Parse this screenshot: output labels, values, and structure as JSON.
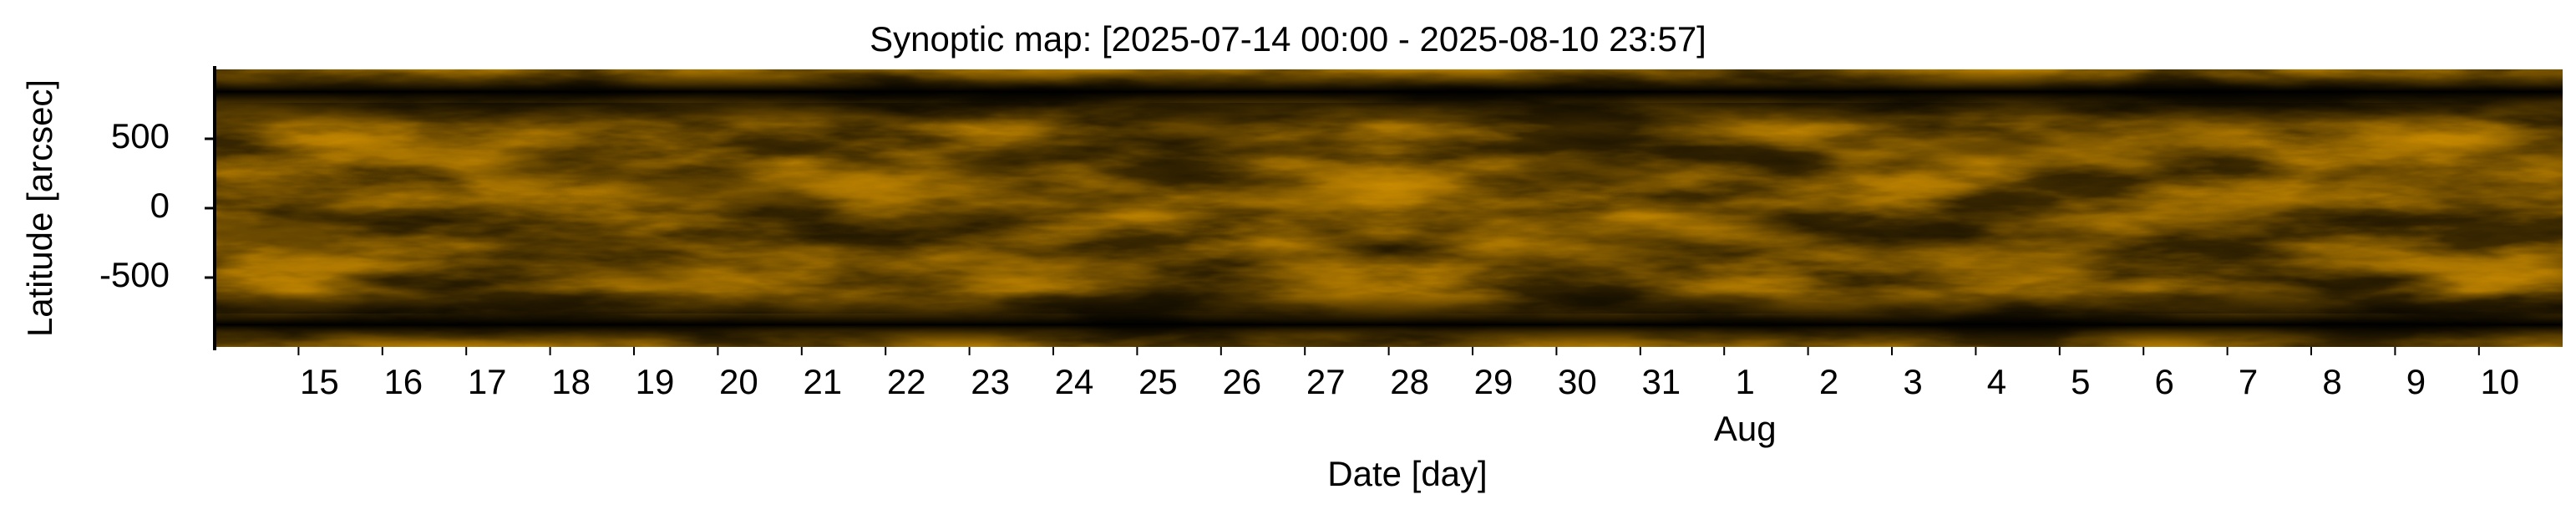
{
  "chart_data": {
    "type": "heatmap",
    "title": "Synoptic map: [2025-07-14 00:00 - 2025-08-10 23:57]",
    "xlabel": "Date [day]",
    "ylabel": "Latitude [arcsec]",
    "xlim": [
      "2025-07-14 00:00",
      "2025-08-10 23:57"
    ],
    "ylim": [
      -1000,
      1000
    ],
    "yticks": [
      -500,
      0,
      500
    ],
    "xticks": [
      {
        "value": "2025-07-15",
        "label": "15"
      },
      {
        "value": "2025-07-16",
        "label": "16"
      },
      {
        "value": "2025-07-17",
        "label": "17"
      },
      {
        "value": "2025-07-18",
        "label": "18"
      },
      {
        "value": "2025-07-19",
        "label": "19"
      },
      {
        "value": "2025-07-20",
        "label": "20"
      },
      {
        "value": "2025-07-21",
        "label": "21"
      },
      {
        "value": "2025-07-22",
        "label": "22"
      },
      {
        "value": "2025-07-23",
        "label": "23"
      },
      {
        "value": "2025-07-24",
        "label": "24"
      },
      {
        "value": "2025-07-25",
        "label": "25"
      },
      {
        "value": "2025-07-26",
        "label": "26"
      },
      {
        "value": "2025-07-27",
        "label": "27"
      },
      {
        "value": "2025-07-28",
        "label": "28"
      },
      {
        "value": "2025-07-29",
        "label": "29"
      },
      {
        "value": "2025-07-30",
        "label": "30"
      },
      {
        "value": "2025-07-31",
        "label": "31"
      },
      {
        "value": "2025-08-01",
        "label": "1"
      },
      {
        "value": "2025-08-02",
        "label": "2"
      },
      {
        "value": "2025-08-03",
        "label": "3"
      },
      {
        "value": "2025-08-04",
        "label": "4"
      },
      {
        "value": "2025-08-05",
        "label": "5"
      },
      {
        "value": "2025-08-06",
        "label": "6"
      },
      {
        "value": "2025-08-07",
        "label": "7"
      },
      {
        "value": "2025-08-08",
        "label": "8"
      },
      {
        "value": "2025-08-09",
        "label": "9"
      },
      {
        "value": "2025-08-10",
        "label": "10"
      }
    ],
    "x_month_label": {
      "value": "2025-08-01",
      "label": "Aug"
    },
    "colormap": [
      "#000000",
      "#c88a00",
      "#ffd860"
    ]
  }
}
